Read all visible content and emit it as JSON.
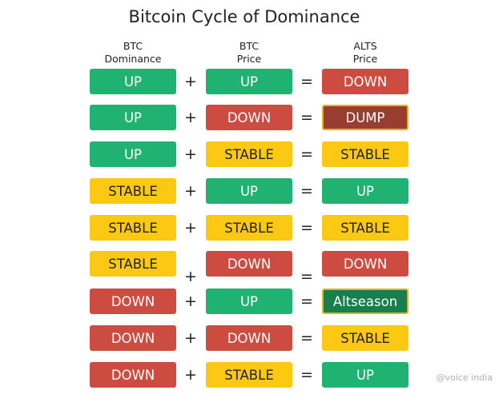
{
  "title": "Bitcoin Cycle of Dominance",
  "headers": {
    "btc_dominance": [
      "BTC",
      "Dominance"
    ],
    "btc_price": [
      "BTC",
      "Price"
    ],
    "alts_price": [
      "ALTS",
      "Price"
    ]
  },
  "operators": {
    "plus": "+",
    "equals": "="
  },
  "colors": {
    "green": "#1fb270",
    "red": "#cc4c42",
    "yellow": "#fbc814",
    "dark_red": "#983d2f",
    "dark_green": "#157f4d",
    "highlight_border": "#e5b413"
  },
  "rows": [
    {
      "dominance": {
        "label": "UP",
        "color": "green"
      },
      "price": {
        "label": "UP",
        "color": "green"
      },
      "alts": {
        "label": "DOWN",
        "color": "red"
      }
    },
    {
      "dominance": {
        "label": "UP",
        "color": "green"
      },
      "price": {
        "label": "DOWN",
        "color": "red"
      },
      "alts": {
        "label": "DUMP",
        "color": "dark_red"
      }
    },
    {
      "dominance": {
        "label": "UP",
        "color": "green"
      },
      "price": {
        "label": "STABLE",
        "color": "yellow"
      },
      "alts": {
        "label": "STABLE",
        "color": "yellow"
      }
    },
    {
      "dominance": {
        "label": "STABLE",
        "color": "yellow"
      },
      "price": {
        "label": "UP",
        "color": "green"
      },
      "alts": {
        "label": "UP",
        "color": "green"
      }
    },
    {
      "dominance": {
        "label": "STABLE",
        "color": "yellow"
      },
      "price": {
        "label": "STABLE",
        "color": "yellow"
      },
      "alts": {
        "label": "STABLE",
        "color": "yellow"
      }
    },
    {
      "dominance": {
        "label": "STABLE",
        "color": "yellow"
      },
      "price": {
        "label": "DOWN",
        "color": "red"
      },
      "alts": {
        "label": "DOWN",
        "color": "red"
      }
    },
    {
      "dominance": {
        "label": "DOWN",
        "color": "red"
      },
      "price": {
        "label": "UP",
        "color": "green"
      },
      "alts": {
        "label": "Altseason",
        "color": "dark_green"
      }
    },
    {
      "dominance": {
        "label": "DOWN",
        "color": "red"
      },
      "price": {
        "label": "DOWN",
        "color": "red"
      },
      "alts": {
        "label": "STABLE",
        "color": "yellow"
      }
    },
    {
      "dominance": {
        "label": "DOWN",
        "color": "red"
      },
      "price": {
        "label": "STABLE",
        "color": "yellow"
      },
      "alts": {
        "label": "UP",
        "color": "green"
      }
    }
  ],
  "watermark": "@voice india"
}
